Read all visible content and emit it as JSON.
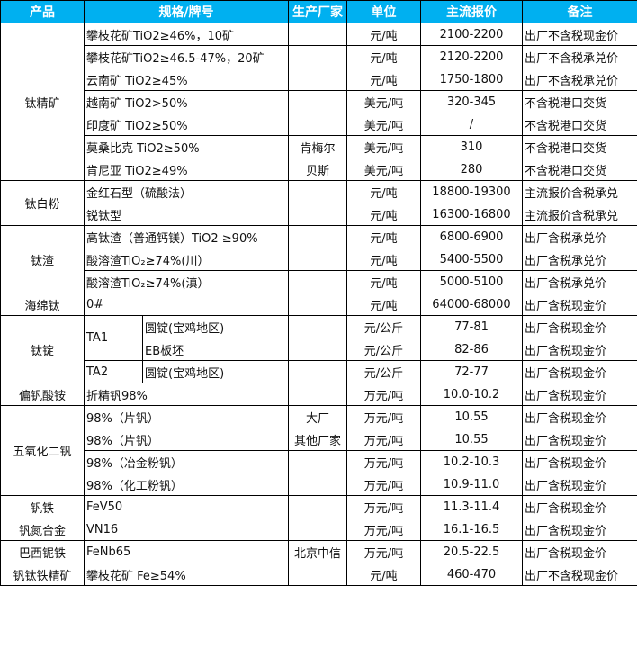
{
  "colors": {
    "header_bg": "#00B0F0",
    "header_text": "#FFFFFF"
  },
  "headers": [
    "产品",
    "规格/牌号",
    "生产厂家",
    "单位",
    "主流报价",
    "备注"
  ],
  "groups": [
    {
      "product": "钛精矿",
      "rows": [
        {
          "spec": "攀枝花矿TiO2≥46%，10矿",
          "maker": "",
          "unit": "元/吨",
          "price": "2100-2200",
          "note": "出厂不含税现金价"
        },
        {
          "spec": "攀枝花矿TiO2≥46.5-47%，20矿",
          "maker": "",
          "unit": "元/吨",
          "price": "2120-2200",
          "note": "出厂不含税承兑价"
        },
        {
          "spec": "云南矿 TiO2≥45%",
          "maker": "",
          "unit": "元/吨",
          "price": "1750-1800",
          "note": "出厂不含税承兑价"
        },
        {
          "spec": "越南矿 TiO2>50%",
          "maker": "",
          "unit": "美元/吨",
          "price": "320-345",
          "note": "不含税港口交货"
        },
        {
          "spec": "印度矿 TiO2≥50%",
          "maker": "",
          "unit": "美元/吨",
          "price": "/",
          "note": "不含税港口交货"
        },
        {
          "spec": "莫桑比克 TiO2≥50%",
          "maker": "肯梅尔",
          "unit": "美元/吨",
          "price": "310",
          "note": "不含税港口交货"
        },
        {
          "spec": "肯尼亚 TiO2≥49%",
          "maker": "贝斯",
          "unit": "美元/吨",
          "price": "280",
          "note": "不含税港口交货"
        }
      ]
    },
    {
      "product": "钛白粉",
      "rows": [
        {
          "spec": "金红石型（硫酸法）",
          "maker": "",
          "unit": "元/吨",
          "price": "18800-19300",
          "note": "主流报价含税承兑"
        },
        {
          "spec": "锐钛型",
          "maker": "",
          "unit": "元/吨",
          "price": "16300-16800",
          "note": "主流报价含税承兑"
        }
      ]
    },
    {
      "product": "钛渣",
      "rows": [
        {
          "spec": "高钛渣（普通钙镁）TiO2 ≥90%",
          "maker": "",
          "unit": "元/吨",
          "price": "6800-6900",
          "note": "出厂含税承兑价"
        },
        {
          "spec": "酸溶渣TiO₂≥74%(川）",
          "maker": "",
          "unit": "元/吨",
          "price": "5400-5500",
          "note": "出厂含税承兑价"
        },
        {
          "spec": "酸溶渣TiO₂≥74%(滇）",
          "maker": "",
          "unit": "元/吨",
          "price": "5000-5100",
          "note": "出厂含税承兑价"
        }
      ]
    },
    {
      "product": "海绵钛",
      "rows": [
        {
          "spec": "0#",
          "maker": "",
          "unit": "元/吨",
          "price": "64000-68000",
          "note": "出厂含税现金价"
        }
      ]
    },
    {
      "product": "钛锭",
      "rows": [
        {
          "grade": "TA1",
          "grade_span": 2,
          "spec": "圆锭(宝鸡地区)",
          "maker": "",
          "unit": "元/公斤",
          "price": "77-81",
          "note": "出厂含税现金价"
        },
        {
          "spec": "EB板坯",
          "maker": "",
          "unit": "元/公斤",
          "price": "82-86",
          "note": "出厂含税现金价"
        },
        {
          "grade": "TA2",
          "grade_span": 1,
          "spec": "圆锭(宝鸡地区)",
          "maker": "",
          "unit": "元/公斤",
          "price": "72-77",
          "note": "出厂含税现金价"
        }
      ]
    },
    {
      "product": "偏钒酸铵",
      "rows": [
        {
          "spec": "折精钒98%",
          "maker": "",
          "unit": "万元/吨",
          "price": "10.0-10.2",
          "note": "出厂含税现金价"
        }
      ]
    },
    {
      "product": "五氧化二钒",
      "rows": [
        {
          "spec": "98%（片钒）",
          "maker": "大厂",
          "unit": "万元/吨",
          "price": "10.55",
          "note": "出厂含税现金价"
        },
        {
          "spec": "98%（片钒）",
          "maker": "其他厂家",
          "unit": "万元/吨",
          "price": "10.55",
          "note": "出厂含税现金价"
        },
        {
          "spec": "98%（冶金粉钒）",
          "maker": "",
          "unit": "万元/吨",
          "price": "10.2-10.3",
          "note": "出厂含税现金价"
        },
        {
          "spec": "98%（化工粉钒）",
          "maker": "",
          "unit": "万元/吨",
          "price": "10.9-11.0",
          "note": "出厂含税现金价"
        }
      ]
    },
    {
      "product": "钒铁",
      "rows": [
        {
          "spec": "FeV50",
          "maker": "",
          "unit": "万元/吨",
          "price": "11.3-11.4",
          "note": "出厂含税现金价"
        }
      ]
    },
    {
      "product": "钒氮合金",
      "rows": [
        {
          "spec": "VN16",
          "maker": "",
          "unit": "万元/吨",
          "price": "16.1-16.5",
          "note": "出厂含税现金价"
        }
      ]
    },
    {
      "product": "巴西铌铁",
      "rows": [
        {
          "spec": "FeNb65",
          "maker": "北京中信",
          "unit": "万元/吨",
          "price": "20.5-22.5",
          "note": "出厂含税现金价"
        }
      ]
    },
    {
      "product": "钒钛铁精矿",
      "rows": [
        {
          "spec": "攀枝花矿 Fe≥54%",
          "maker": "",
          "unit": "元/吨",
          "price": "460-470",
          "note": "出厂不含税现金价"
        }
      ]
    }
  ]
}
